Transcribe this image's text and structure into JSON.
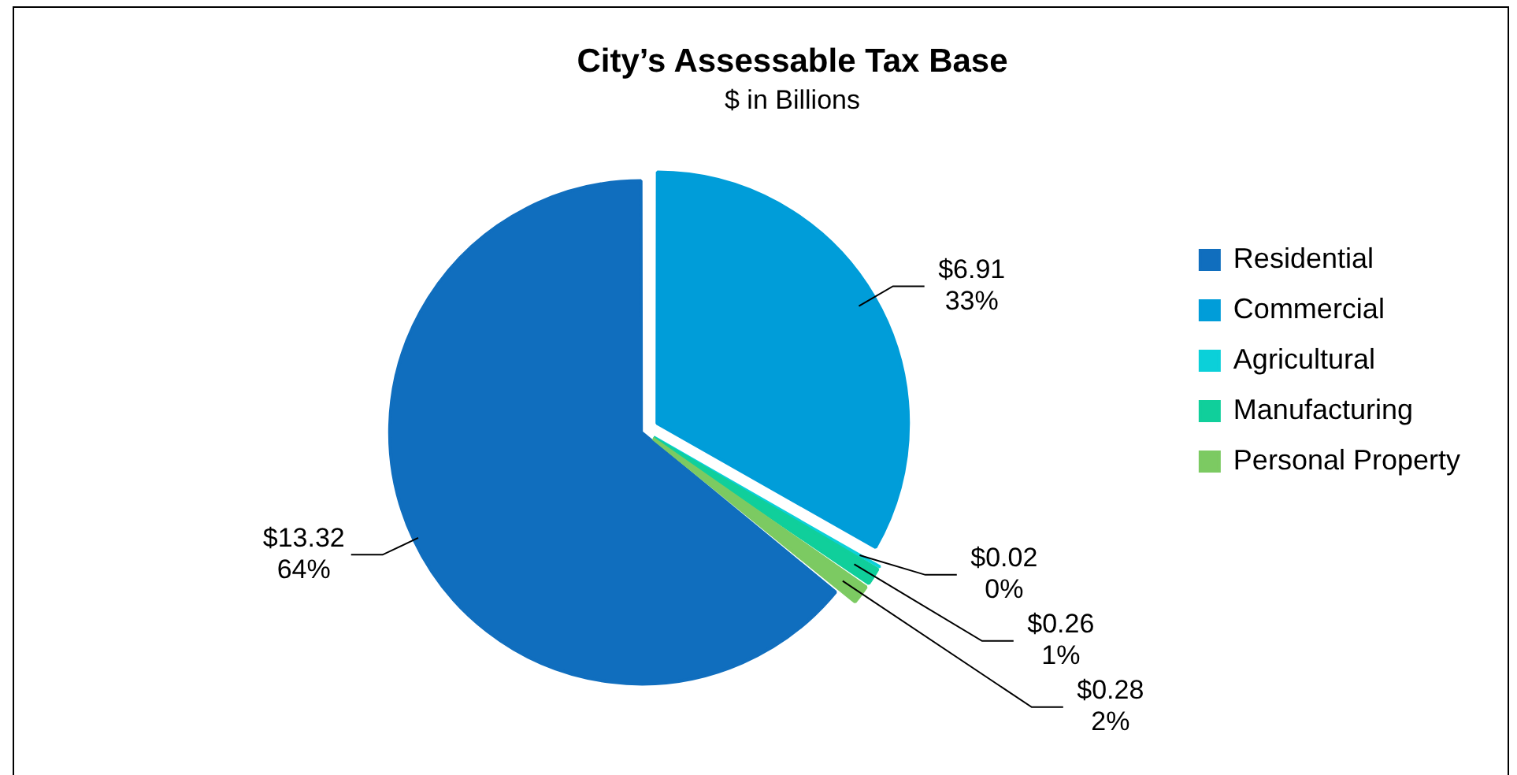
{
  "chart_data": {
    "type": "pie",
    "title": "City’s Assessable Tax Base",
    "subtitle": "$ in Billions",
    "categories": [
      "Residential",
      "Commercial",
      "Agricultural",
      "Manufacturing",
      "Personal Property"
    ],
    "values": [
      13.32,
      6.91,
      0.02,
      0.26,
      0.28
    ],
    "colors": [
      "#106ebe",
      "#009dd9",
      "#0bd0d9",
      "#10cf9b",
      "#7cca62"
    ],
    "value_labels": [
      "$13.32\n64%",
      "$6.91\n33%",
      "$0.02\n0%",
      "$0.26\n1%",
      "$0.28\n2%"
    ],
    "legend": "right"
  }
}
